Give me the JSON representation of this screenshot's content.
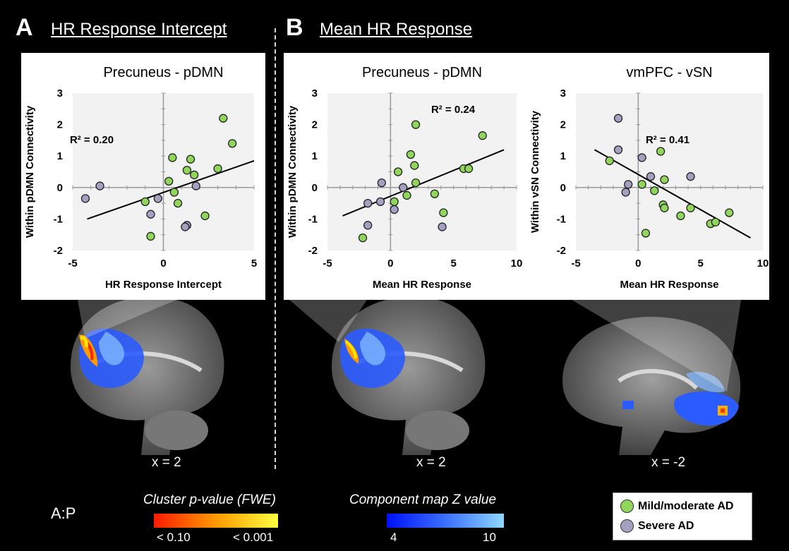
{
  "panels": {
    "A": {
      "letter": "A",
      "title": "HR Response Intercept"
    },
    "B": {
      "letter": "B",
      "title": "Mean HR Response"
    }
  },
  "colors": {
    "mild": "#8fd65a",
    "severe": "#a3a0c2",
    "line": "#000000",
    "grid": "#9a9a9a"
  },
  "chart_data": [
    {
      "type": "scatter",
      "title": "Precuneus - pDMN",
      "xlabel": "HR Response Intercept",
      "ylabel": "Within pDMN Connectivity",
      "xlim": [
        -5,
        5
      ],
      "ylim": [
        -2,
        3
      ],
      "xticks": [
        "-5",
        "0",
        "5"
      ],
      "yticks": [
        "-2",
        "-1",
        "0",
        "1",
        "2",
        "3"
      ],
      "grid": true,
      "annotation": "R² = 0.20",
      "trendline": [
        [
          -4.2,
          -1.0
        ],
        [
          5.0,
          0.85
        ]
      ],
      "series": [
        {
          "group": "mild",
          "points": [
            [
              3.3,
              2.2
            ],
            [
              3.8,
              1.4
            ],
            [
              0.5,
              0.95
            ],
            [
              1.5,
              0.9
            ],
            [
              3.0,
              0.6
            ],
            [
              1.3,
              0.55
            ],
            [
              1.7,
              0.4
            ],
            [
              0.3,
              0.2
            ],
            [
              0.6,
              -0.15
            ],
            [
              0.8,
              -0.5
            ],
            [
              -1.0,
              -0.45
            ],
            [
              2.3,
              -0.9
            ],
            [
              -0.7,
              -1.55
            ]
          ]
        },
        {
          "group": "severe",
          "points": [
            [
              -3.5,
              0.05
            ],
            [
              -4.3,
              -0.35
            ],
            [
              -0.3,
              -0.35
            ],
            [
              1.8,
              0.05
            ],
            [
              -0.7,
              -0.85
            ],
            [
              1.3,
              -1.2
            ],
            [
              1.2,
              -1.25
            ]
          ]
        }
      ]
    },
    {
      "type": "scatter",
      "title": "Precuneus - pDMN",
      "xlabel": "Mean HR Response",
      "ylabel": "Within pDMN Connectivity",
      "xlim": [
        -5,
        10
      ],
      "ylim": [
        -2,
        3
      ],
      "xticks": [
        "-5",
        "0",
        "5",
        "10"
      ],
      "yticks": [
        "-2",
        "-1",
        "0",
        "1",
        "2",
        "3"
      ],
      "grid": true,
      "annotation": "R² = 0.24",
      "trendline": [
        [
          -3.8,
          -0.9
        ],
        [
          9.0,
          1.2
        ]
      ],
      "series": [
        {
          "group": "mild",
          "points": [
            [
              2.0,
              2.0
            ],
            [
              7.3,
              1.65
            ],
            [
              1.6,
              1.05
            ],
            [
              1.9,
              0.7
            ],
            [
              5.8,
              0.6
            ],
            [
              6.2,
              0.6
            ],
            [
              0.6,
              0.5
            ],
            [
              2.0,
              0.15
            ],
            [
              1.3,
              -0.25
            ],
            [
              3.5,
              -0.2
            ],
            [
              0.3,
              -0.45
            ],
            [
              4.2,
              -0.8
            ],
            [
              -2.2,
              -1.6
            ]
          ]
        },
        {
          "group": "severe",
          "points": [
            [
              -0.7,
              0.15
            ],
            [
              1.0,
              0.0
            ],
            [
              -1.8,
              -0.5
            ],
            [
              -0.8,
              -0.45
            ],
            [
              0.3,
              -0.7
            ],
            [
              -1.8,
              -1.2
            ],
            [
              4.1,
              -1.25
            ]
          ]
        }
      ]
    },
    {
      "type": "scatter",
      "title": "vmPFC - vSN",
      "xlabel": "Mean HR Response",
      "ylabel": "Within vSN Connectivity",
      "xlim": [
        -5,
        10
      ],
      "ylim": [
        -2,
        3
      ],
      "xticks": [
        "-5",
        "0",
        "5",
        "10"
      ],
      "yticks": [
        "-2",
        "-1",
        "0",
        "1",
        "2",
        "3"
      ],
      "grid": true,
      "annotation": "R² = 0.41",
      "trendline": [
        [
          -3.5,
          1.2
        ],
        [
          9.0,
          -1.6
        ]
      ],
      "series": [
        {
          "group": "mild",
          "points": [
            [
              -2.3,
              0.85
            ],
            [
              1.8,
              1.15
            ],
            [
              2.1,
              0.25
            ],
            [
              0.3,
              0.1
            ],
            [
              1.3,
              -0.1
            ],
            [
              2.0,
              -0.55
            ],
            [
              2.1,
              -0.65
            ],
            [
              4.2,
              -0.65
            ],
            [
              3.4,
              -0.9
            ],
            [
              5.8,
              -1.15
            ],
            [
              6.2,
              -1.1
            ],
            [
              7.3,
              -0.8
            ],
            [
              0.6,
              -1.45
            ]
          ]
        },
        {
          "group": "severe",
          "points": [
            [
              -1.6,
              2.2
            ],
            [
              -1.6,
              1.2
            ],
            [
              0.3,
              0.95
            ],
            [
              1.0,
              0.35
            ],
            [
              4.2,
              0.35
            ],
            [
              -0.8,
              0.1
            ],
            [
              -1.0,
              -0.15
            ]
          ]
        }
      ]
    }
  ],
  "coords": [
    "x = 2",
    "x = 2",
    "x = -2"
  ],
  "legend": {
    "cluster_title": "Cluster p-value (FWE)",
    "cluster_low": "< 0.10",
    "cluster_high": "< 0.001",
    "z_title": "Component map Z value",
    "z_low": "4",
    "z_high": "10",
    "ap": "A:P",
    "groups": [
      "Mild/moderate AD",
      "Severe AD"
    ]
  }
}
